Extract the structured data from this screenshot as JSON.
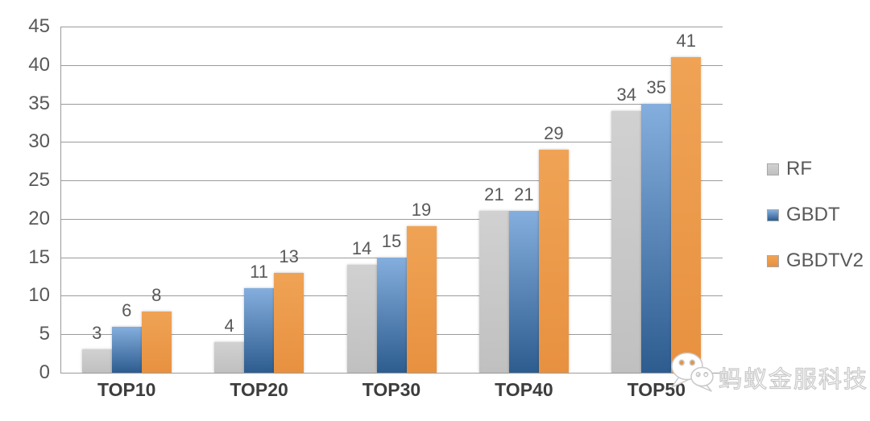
{
  "chart_data": {
    "type": "bar",
    "title": "",
    "xlabel": "",
    "ylabel": "",
    "categories": [
      "TOP10",
      "TOP20",
      "TOP30",
      "TOP40",
      "TOP50"
    ],
    "series": [
      {
        "name": "RF",
        "values": [
          3,
          4,
          14,
          21,
          34
        ],
        "color_top": "#d1d1d1",
        "color_bottom": "#c0c0c0"
      },
      {
        "name": "GBDT",
        "values": [
          6,
          11,
          15,
          21,
          35
        ],
        "color_top": "#84aedd",
        "color_bottom": "#2d5c8f"
      },
      {
        "name": "GBDTV2",
        "values": [
          8,
          13,
          19,
          29,
          41
        ],
        "color_top": "#f0a355",
        "color_bottom": "#e79140"
      }
    ],
    "ylim": [
      0,
      45
    ],
    "ytick_step": 5,
    "yticks": [
      0,
      5,
      10,
      15,
      20,
      25,
      30,
      35,
      40,
      45
    ],
    "grid": true,
    "data_labels": true,
    "legend_position": "right"
  },
  "colors": {
    "gridline": "#9b9b9b",
    "axis_text": "#595959",
    "category_text": "#3d3d3d",
    "data_label_text": "#595959"
  },
  "watermark": {
    "text": "蚂蚁金服科技",
    "icon": "wechat-chat-bubbles-icon"
  }
}
